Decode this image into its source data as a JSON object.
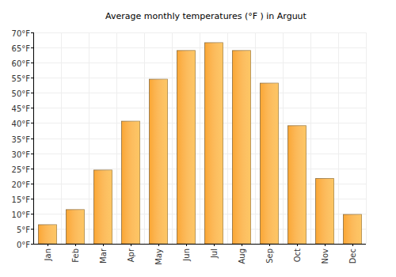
{
  "chart_data": {
    "type": "bar",
    "title": "Average monthly temperatures (°F ) in Arguut",
    "categories": [
      "Jan",
      "Feb",
      "Mar",
      "Apr",
      "May",
      "Jun",
      "Jul",
      "Aug",
      "Sep",
      "Oct",
      "Nov",
      "Dec"
    ],
    "values": [
      6.3,
      11.3,
      24.4,
      40.6,
      54.5,
      64,
      66.6,
      64,
      53.2,
      39.1,
      21.6,
      9.7
    ],
    "color": "#fba632",
    "ylim": [
      0,
      70
    ],
    "yticks": [
      {
        "value": 0,
        "label": "0°F"
      },
      {
        "value": 5,
        "label": "5°F"
      },
      {
        "value": 10,
        "label": "10°F"
      },
      {
        "value": 15,
        "label": "15°F"
      },
      {
        "value": 20,
        "label": "20°F"
      },
      {
        "value": 25,
        "label": "25°F"
      },
      {
        "value": 30,
        "label": "30°F"
      },
      {
        "value": 35,
        "label": "35°F"
      },
      {
        "value": 40,
        "label": "40°F"
      },
      {
        "value": 45,
        "label": "45°F"
      },
      {
        "value": 50,
        "label": "50°F"
      },
      {
        "value": 55,
        "label": "55°F"
      },
      {
        "value": 60,
        "label": "60°F"
      },
      {
        "value": 65,
        "label": "65°F"
      },
      {
        "value": 70,
        "label": "70°F"
      }
    ],
    "grid": true
  }
}
